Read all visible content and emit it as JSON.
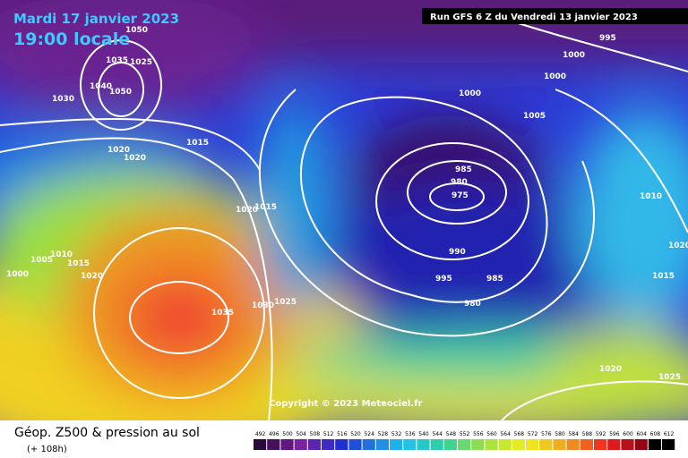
{
  "header": {
    "date": "Mardi 17 janvier 2023",
    "time": "19:00 locale"
  },
  "run_info": "Run GFS 6 Z du Vendredi 13 janvier 2023",
  "copyright": "Copyright © 2023 Meteociel.fr",
  "legend": {
    "title": "Géop. Z500 & pression au sol",
    "subtitle": "(+ 108h)",
    "scale": [
      492,
      496,
      500,
      504,
      508,
      512,
      516,
      520,
      524,
      528,
      532,
      536,
      540,
      544,
      548,
      552,
      556,
      560,
      564,
      568,
      572,
      576,
      580,
      584,
      588,
      592,
      596,
      600,
      604,
      608,
      612
    ]
  },
  "isobars": [
    "1050",
    "1035",
    "1025",
    "1030",
    "1040",
    "1050",
    "1020",
    "1020",
    "1015",
    "1020",
    "1015",
    "1005",
    "1010",
    "1015",
    "1000",
    "1020",
    "1035",
    "1030",
    "1025",
    "985",
    "980",
    "975",
    "990",
    "995",
    "985",
    "980",
    "1000",
    "995",
    "1000",
    "1000",
    "1005",
    "1010",
    "1020",
    "1015",
    "1020",
    "1025"
  ]
}
